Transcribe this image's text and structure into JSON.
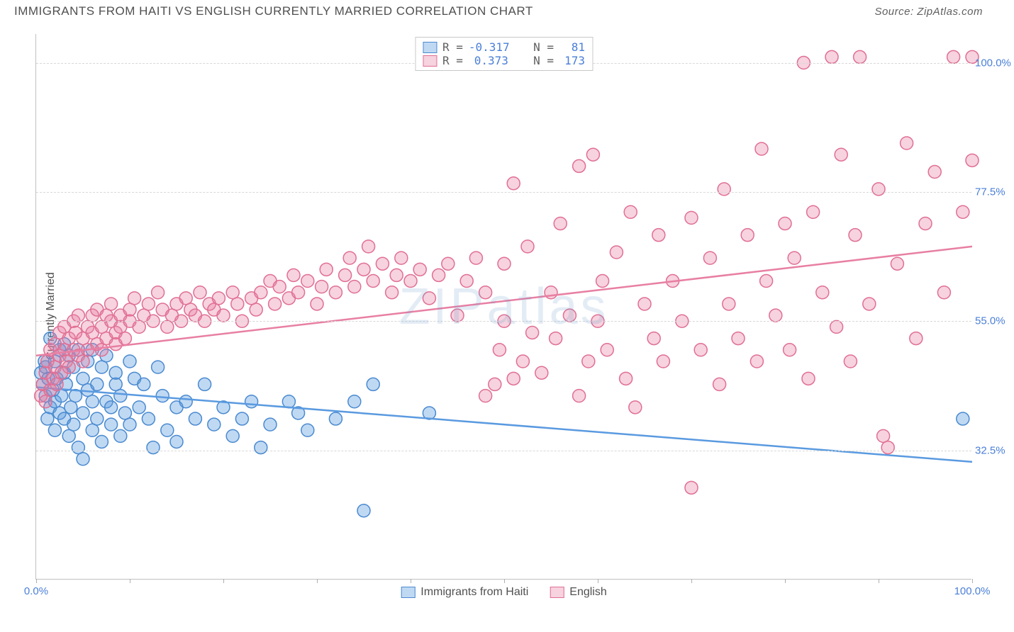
{
  "header": {
    "title": "IMMIGRANTS FROM HAITI VS ENGLISH CURRENTLY MARRIED CORRELATION CHART",
    "source": "Source: ZipAtlas.com"
  },
  "chart": {
    "type": "scatter",
    "y_label": "Currently Married",
    "watermark": "ZIPatlas",
    "background_color": "#ffffff",
    "grid_color": "#d8d8d8",
    "axis_color": "#c0c0c0",
    "tick_label_color": "#4a7fd8",
    "xlim": [
      0,
      100
    ],
    "ylim": [
      10,
      105
    ],
    "x_ticks": [
      0,
      10,
      20,
      30,
      40,
      50,
      60,
      70,
      80,
      90,
      100
    ],
    "x_tick_labels": {
      "0": "0.0%",
      "100": "100.0%"
    },
    "y_ticks": [
      32.5,
      55.0,
      77.5,
      100.0
    ],
    "y_tick_labels": [
      "32.5%",
      "55.0%",
      "77.5%",
      "100.0%"
    ],
    "marker_radius": 9,
    "marker_opacity": 0.55,
    "line_width": 2.5,
    "series": [
      {
        "id": "haiti",
        "label": "Immigrants from Haiti",
        "color": "#5a9ae0",
        "fill": "rgba(90,154,224,0.38)",
        "stroke": "#4a8ad0",
        "R": "-0.317",
        "N": "81",
        "trend": {
          "x1": 0,
          "y1": 43.5,
          "x2": 100,
          "y2": 30.5
        },
        "points": [
          [
            0.5,
            46
          ],
          [
            0.7,
            44
          ],
          [
            0.9,
            48
          ],
          [
            1,
            42
          ],
          [
            1,
            47
          ],
          [
            1.2,
            38
          ],
          [
            1.3,
            45
          ],
          [
            1.5,
            40
          ],
          [
            1.5,
            52
          ],
          [
            1.8,
            43
          ],
          [
            2,
            48
          ],
          [
            2,
            41
          ],
          [
            2,
            36
          ],
          [
            2.2,
            45
          ],
          [
            2.5,
            50
          ],
          [
            2.5,
            39
          ],
          [
            2.7,
            42
          ],
          [
            3,
            46
          ],
          [
            3,
            51
          ],
          [
            3,
            38
          ],
          [
            3.2,
            44
          ],
          [
            3.5,
            49
          ],
          [
            3.5,
            35
          ],
          [
            3.7,
            40
          ],
          [
            4,
            47
          ],
          [
            4,
            37
          ],
          [
            4.2,
            42
          ],
          [
            4.5,
            50
          ],
          [
            4.5,
            33
          ],
          [
            5,
            45
          ],
          [
            5,
            39
          ],
          [
            5,
            31
          ],
          [
            5.5,
            43
          ],
          [
            5.5,
            48
          ],
          [
            6,
            36
          ],
          [
            6,
            41
          ],
          [
            6,
            50
          ],
          [
            6.5,
            44
          ],
          [
            6.5,
            38
          ],
          [
            7,
            47
          ],
          [
            7,
            34
          ],
          [
            7.5,
            41
          ],
          [
            7.5,
            49
          ],
          [
            8,
            40
          ],
          [
            8,
            37
          ],
          [
            8.5,
            44
          ],
          [
            8.5,
            46
          ],
          [
            9,
            35
          ],
          [
            9,
            42
          ],
          [
            9.5,
            39
          ],
          [
            10,
            48
          ],
          [
            10,
            37
          ],
          [
            10.5,
            45
          ],
          [
            11,
            40
          ],
          [
            11.5,
            44
          ],
          [
            12,
            38
          ],
          [
            12.5,
            33
          ],
          [
            13,
            47
          ],
          [
            13.5,
            42
          ],
          [
            14,
            36
          ],
          [
            15,
            40
          ],
          [
            15,
            34
          ],
          [
            16,
            41
          ],
          [
            17,
            38
          ],
          [
            18,
            44
          ],
          [
            19,
            37
          ],
          [
            20,
            40
          ],
          [
            21,
            35
          ],
          [
            22,
            38
          ],
          [
            23,
            41
          ],
          [
            24,
            33
          ],
          [
            25,
            37
          ],
          [
            27,
            41
          ],
          [
            28,
            39
          ],
          [
            29,
            36
          ],
          [
            32,
            38
          ],
          [
            34,
            41
          ],
          [
            35,
            22
          ],
          [
            36,
            44
          ],
          [
            42,
            39
          ],
          [
            99,
            38
          ]
        ]
      },
      {
        "id": "english",
        "label": "English",
        "color": "#e87fa3",
        "fill": "rgba(232,127,163,0.35)",
        "stroke": "#e06f93",
        "R": "0.373",
        "N": "173",
        "trend": {
          "x1": 0,
          "y1": 49,
          "x2": 100,
          "y2": 68
        },
        "points": [
          [
            0.5,
            42
          ],
          [
            0.7,
            44
          ],
          [
            1,
            46
          ],
          [
            1,
            41
          ],
          [
            1.2,
            48
          ],
          [
            1.5,
            43
          ],
          [
            1.5,
            50
          ],
          [
            1.8,
            45
          ],
          [
            2,
            47
          ],
          [
            2,
            51
          ],
          [
            2.2,
            44
          ],
          [
            2.5,
            49
          ],
          [
            2.5,
            53
          ],
          [
            2.7,
            46
          ],
          [
            3,
            50
          ],
          [
            3,
            54
          ],
          [
            3.2,
            48
          ],
          [
            3.5,
            52
          ],
          [
            3.5,
            47
          ],
          [
            4,
            55
          ],
          [
            4,
            50
          ],
          [
            4.2,
            53
          ],
          [
            4.5,
            49
          ],
          [
            4.5,
            56
          ],
          [
            5,
            52
          ],
          [
            5,
            48
          ],
          [
            5.5,
            54
          ],
          [
            5.5,
            50
          ],
          [
            6,
            56
          ],
          [
            6,
            53
          ],
          [
            6.5,
            51
          ],
          [
            6.5,
            57
          ],
          [
            7,
            54
          ],
          [
            7,
            50
          ],
          [
            7.5,
            56
          ],
          [
            7.5,
            52
          ],
          [
            8,
            55
          ],
          [
            8,
            58
          ],
          [
            8.5,
            53
          ],
          [
            8.5,
            51
          ],
          [
            9,
            56
          ],
          [
            9,
            54
          ],
          [
            9.5,
            52
          ],
          [
            10,
            57
          ],
          [
            10,
            55
          ],
          [
            10.5,
            59
          ],
          [
            11,
            54
          ],
          [
            11.5,
            56
          ],
          [
            12,
            58
          ],
          [
            12.5,
            55
          ],
          [
            13,
            60
          ],
          [
            13.5,
            57
          ],
          [
            14,
            54
          ],
          [
            14.5,
            56
          ],
          [
            15,
            58
          ],
          [
            15.5,
            55
          ],
          [
            16,
            59
          ],
          [
            16.5,
            57
          ],
          [
            17,
            56
          ],
          [
            17.5,
            60
          ],
          [
            18,
            55
          ],
          [
            18.5,
            58
          ],
          [
            19,
            57
          ],
          [
            19.5,
            59
          ],
          [
            20,
            56
          ],
          [
            21,
            60
          ],
          [
            21.5,
            58
          ],
          [
            22,
            55
          ],
          [
            23,
            59
          ],
          [
            23.5,
            57
          ],
          [
            24,
            60
          ],
          [
            25,
            62
          ],
          [
            25.5,
            58
          ],
          [
            26,
            61
          ],
          [
            27,
            59
          ],
          [
            27.5,
            63
          ],
          [
            28,
            60
          ],
          [
            29,
            62
          ],
          [
            30,
            58
          ],
          [
            30.5,
            61
          ],
          [
            31,
            64
          ],
          [
            32,
            60
          ],
          [
            33,
            63
          ],
          [
            33.5,
            66
          ],
          [
            34,
            61
          ],
          [
            35,
            64
          ],
          [
            35.5,
            68
          ],
          [
            36,
            62
          ],
          [
            37,
            65
          ],
          [
            38,
            60
          ],
          [
            38.5,
            63
          ],
          [
            39,
            66
          ],
          [
            40,
            62
          ],
          [
            41,
            64
          ],
          [
            42,
            59
          ],
          [
            43,
            63
          ],
          [
            44,
            65
          ],
          [
            45,
            56
          ],
          [
            46,
            62
          ],
          [
            47,
            66
          ],
          [
            48,
            42
          ],
          [
            48,
            60
          ],
          [
            49,
            44
          ],
          [
            49.5,
            50
          ],
          [
            50,
            55
          ],
          [
            50,
            65
          ],
          [
            51,
            45
          ],
          [
            51,
            79
          ],
          [
            52,
            48
          ],
          [
            52.5,
            68
          ],
          [
            53,
            53
          ],
          [
            54,
            46
          ],
          [
            55,
            60
          ],
          [
            55.5,
            52
          ],
          [
            56,
            72
          ],
          [
            57,
            56
          ],
          [
            58,
            42
          ],
          [
            58,
            82
          ],
          [
            59,
            48
          ],
          [
            59.5,
            84
          ],
          [
            60,
            55
          ],
          [
            60.5,
            62
          ],
          [
            61,
            50
          ],
          [
            62,
            67
          ],
          [
            63,
            45
          ],
          [
            63.5,
            74
          ],
          [
            64,
            40
          ],
          [
            65,
            58
          ],
          [
            66,
            52
          ],
          [
            66.5,
            70
          ],
          [
            67,
            48
          ],
          [
            68,
            62
          ],
          [
            69,
            55
          ],
          [
            70,
            26
          ],
          [
            70,
            73
          ],
          [
            71,
            50
          ],
          [
            72,
            66
          ],
          [
            73,
            44
          ],
          [
            73.5,
            78
          ],
          [
            74,
            58
          ],
          [
            75,
            52
          ],
          [
            76,
            70
          ],
          [
            77,
            48
          ],
          [
            77.5,
            85
          ],
          [
            78,
            62
          ],
          [
            79,
            56
          ],
          [
            80,
            72
          ],
          [
            80.5,
            50
          ],
          [
            81,
            66
          ],
          [
            82,
            100
          ],
          [
            82.5,
            45
          ],
          [
            83,
            74
          ],
          [
            84,
            60
          ],
          [
            85,
            101
          ],
          [
            85.5,
            54
          ],
          [
            86,
            84
          ],
          [
            87,
            48
          ],
          [
            87.5,
            70
          ],
          [
            88,
            101
          ],
          [
            89,
            58
          ],
          [
            90,
            78
          ],
          [
            90.5,
            35
          ],
          [
            91,
            33
          ],
          [
            92,
            65
          ],
          [
            93,
            86
          ],
          [
            94,
            52
          ],
          [
            95,
            72
          ],
          [
            96,
            81
          ],
          [
            97,
            60
          ],
          [
            98,
            101
          ],
          [
            99,
            74
          ],
          [
            100,
            101
          ],
          [
            100,
            83
          ]
        ]
      }
    ]
  },
  "legend_top": {
    "R_label": "R =",
    "N_label": "N ="
  },
  "legend_bottom": [
    {
      "label": "Immigrants from Haiti",
      "series": "haiti"
    },
    {
      "label": "English",
      "series": "english"
    }
  ]
}
